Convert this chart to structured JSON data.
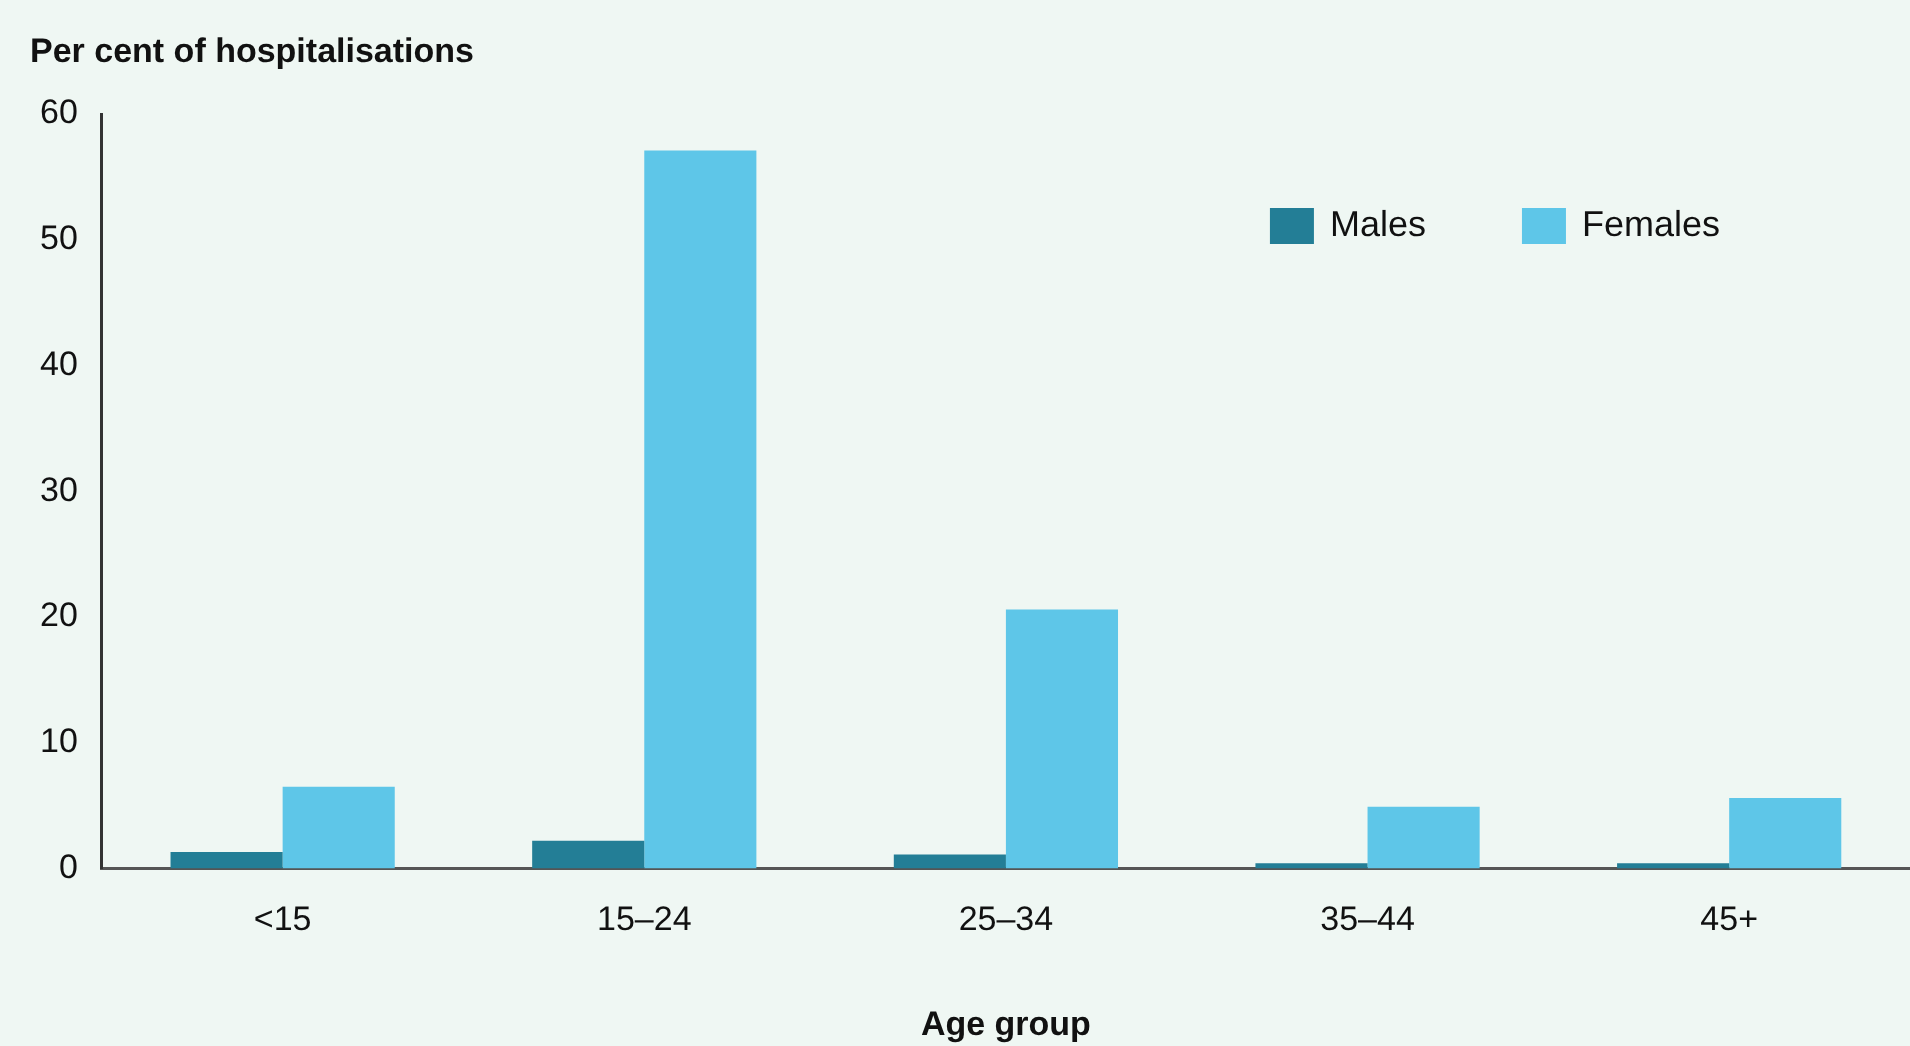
{
  "chart_data": {
    "type": "bar",
    "ylabel": "Per cent of hospitalisations",
    "xlabel": "Age group",
    "categories": [
      "<15",
      "15–24",
      "25–34",
      "35–44",
      "45+"
    ],
    "series": [
      {
        "name": "Males",
        "color": "#237e96",
        "values": [
          1.3,
          2.2,
          1.1,
          0.4,
          0.4
        ]
      },
      {
        "name": "Females",
        "color": "#5ec6e8",
        "values": [
          6.5,
          57.1,
          20.6,
          4.9,
          5.6
        ]
      }
    ],
    "ylim": [
      0,
      60
    ],
    "yticks": [
      0,
      10,
      20,
      30,
      40,
      50,
      60
    ],
    "grid": false,
    "legend": "top right"
  }
}
